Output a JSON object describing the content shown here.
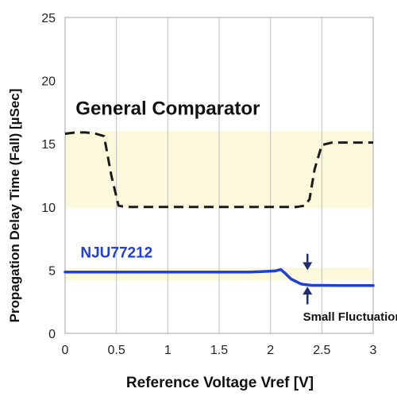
{
  "chart_data": {
    "type": "line",
    "xlabel": "Reference Voltage Vref [V]",
    "ylabel": "Propagation Delay Time (Fall) [µSec]",
    "xlim": [
      0,
      3
    ],
    "ylim": [
      0,
      25
    ],
    "x_ticks": [
      0,
      0.5,
      1,
      1.5,
      2,
      2.5,
      3
    ],
    "x_tick_labels": [
      "0",
      "0.5",
      "1",
      "1.5",
      "2",
      "2.5",
      "3"
    ],
    "y_ticks": [
      0,
      5,
      10,
      15,
      20,
      25
    ],
    "y_tick_labels": [
      "0",
      "5",
      "10",
      "15",
      "20",
      "25"
    ],
    "grid": "vertical",
    "bands": [
      {
        "y_from": 9.9,
        "y_to": 16.0,
        "color": "#fbf8dc"
      },
      {
        "y_from": 4.2,
        "y_to": 5.2,
        "color": "#fbf8dc"
      }
    ],
    "series": [
      {
        "name": "General Comparator",
        "color": "#1a1a1a",
        "style": "dashed",
        "x": [
          0,
          0.1,
          0.2,
          0.3,
          0.38,
          0.45,
          0.52,
          0.6,
          0.8,
          1.0,
          1.5,
          2.0,
          2.25,
          2.33,
          2.38,
          2.43,
          2.5,
          2.6,
          2.8,
          3.0
        ],
        "y": [
          15.8,
          15.9,
          15.9,
          15.8,
          15.6,
          12.5,
          10.1,
          10.0,
          10.0,
          10.0,
          10.0,
          10.0,
          10.0,
          10.1,
          10.6,
          13.0,
          14.9,
          15.1,
          15.1,
          15.1
        ]
      },
      {
        "name": "NJU77212",
        "color": "#1f3fd6",
        "style": "solid",
        "x": [
          0,
          0.5,
          1.0,
          1.5,
          1.8,
          1.95,
          2.05,
          2.1,
          2.15,
          2.2,
          2.3,
          2.4,
          2.5,
          2.7,
          3.0
        ],
        "y": [
          4.85,
          4.85,
          4.85,
          4.85,
          4.85,
          4.9,
          4.95,
          5.05,
          4.7,
          4.3,
          3.9,
          3.8,
          3.8,
          3.78,
          3.78
        ]
      }
    ],
    "annotations": [
      {
        "text": "General Comparator",
        "x": 1.0,
        "y": 17.3,
        "color": "#111111"
      },
      {
        "text": "NJU77212",
        "x": 0.15,
        "y": 6.0,
        "color": "#1f3fd6"
      },
      {
        "text": "Small Fluctuation",
        "x": 2.8,
        "y": 1.0,
        "color": "#111111"
      }
    ],
    "arrows": [
      {
        "name": "down",
        "x": 2.36,
        "y_from": 6.3,
        "y_to": 5.0,
        "color": "#1f2f6b"
      },
      {
        "name": "up",
        "x": 2.36,
        "y_from": 2.3,
        "y_to": 3.7,
        "color": "#1f2f6b"
      }
    ]
  }
}
